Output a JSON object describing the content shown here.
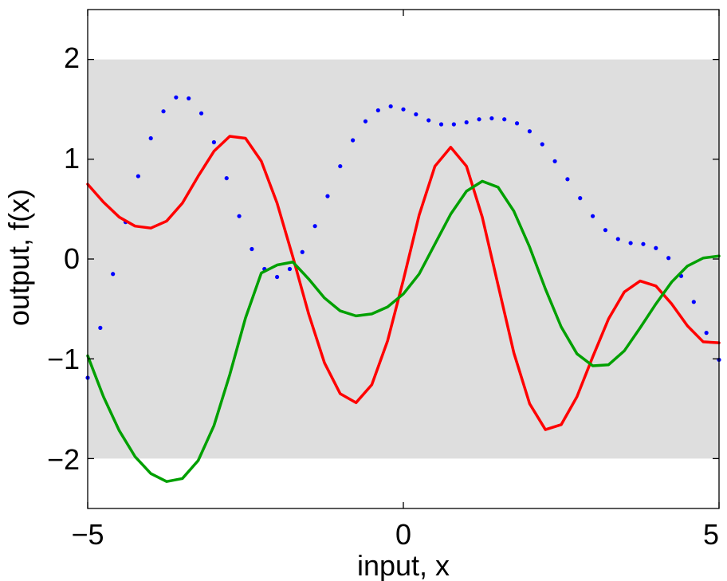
{
  "chart_data": {
    "type": "line",
    "title": "",
    "xlabel": "input, x",
    "ylabel": "output, f(x)",
    "xlim": [
      -5,
      5
    ],
    "ylim": [
      -2.5,
      2.5
    ],
    "xticks": [
      -5,
      0,
      5
    ],
    "yticks": [
      -2,
      -1,
      0,
      1,
      2
    ],
    "xtick_labels": [
      "−5",
      "0",
      "5"
    ],
    "ytick_labels": [
      "−2",
      "−1",
      "0",
      "1",
      "2"
    ],
    "grid": false,
    "legend": "none",
    "band": {
      "lower": -2,
      "upper": 2,
      "color": "#dedede"
    },
    "series": [
      {
        "style": "dots",
        "color": "#0000ff",
        "x": [
          -5.0,
          -4.8,
          -4.6,
          -4.4,
          -4.2,
          -4.0,
          -3.8,
          -3.6,
          -3.4,
          -3.2,
          -3.0,
          -2.8,
          -2.6,
          -2.4,
          -2.2,
          -2.0,
          -1.8,
          -1.6,
          -1.4,
          -1.2,
          -1.0,
          -0.8,
          -0.6,
          -0.4,
          -0.2,
          0.0,
          0.2,
          0.4,
          0.6,
          0.8,
          1.0,
          1.2,
          1.4,
          1.6,
          1.8,
          2.0,
          2.2,
          2.4,
          2.6,
          2.8,
          3.0,
          3.2,
          3.4,
          3.6,
          3.8,
          4.0,
          4.2,
          4.4,
          4.6,
          4.8,
          5.0
        ],
        "y": [
          -1.19,
          -0.69,
          -0.15,
          0.37,
          0.83,
          1.21,
          1.48,
          1.62,
          1.61,
          1.46,
          1.17,
          0.81,
          0.43,
          0.1,
          -0.1,
          -0.18,
          -0.1,
          0.07,
          0.33,
          0.63,
          0.93,
          1.19,
          1.38,
          1.49,
          1.53,
          1.5,
          1.45,
          1.39,
          1.35,
          1.35,
          1.37,
          1.4,
          1.41,
          1.4,
          1.36,
          1.28,
          1.15,
          0.98,
          0.8,
          0.61,
          0.43,
          0.29,
          0.2,
          0.16,
          0.15,
          0.11,
          0.01,
          -0.17,
          -0.43,
          -0.74,
          -1.01
        ]
      },
      {
        "style": "line",
        "color": "#ff0000",
        "x": [
          -5.0,
          -4.75,
          -4.5,
          -4.25,
          -4.0,
          -3.75,
          -3.5,
          -3.25,
          -3.0,
          -2.75,
          -2.5,
          -2.25,
          -2.0,
          -1.75,
          -1.5,
          -1.25,
          -1.0,
          -0.75,
          -0.5,
          -0.25,
          0.0,
          0.25,
          0.5,
          0.75,
          1.0,
          1.25,
          1.5,
          1.75,
          2.0,
          2.25,
          2.5,
          2.75,
          3.0,
          3.25,
          3.5,
          3.75,
          4.0,
          4.25,
          4.5,
          4.75,
          5.0
        ],
        "y": [
          0.75,
          0.57,
          0.42,
          0.33,
          0.31,
          0.38,
          0.56,
          0.83,
          1.08,
          1.23,
          1.21,
          0.98,
          0.56,
          0.02,
          -0.55,
          -1.04,
          -1.35,
          -1.44,
          -1.26,
          -0.82,
          -0.21,
          0.44,
          0.93,
          1.12,
          0.93,
          0.42,
          -0.26,
          -0.94,
          -1.45,
          -1.71,
          -1.66,
          -1.38,
          -0.98,
          -0.6,
          -0.33,
          -0.22,
          -0.27,
          -0.45,
          -0.67,
          -0.83,
          -0.84
        ]
      },
      {
        "style": "line",
        "color": "#00a000",
        "x": [
          -5.0,
          -4.75,
          -4.5,
          -4.25,
          -4.0,
          -3.75,
          -3.5,
          -3.25,
          -3.0,
          -2.75,
          -2.5,
          -2.25,
          -2.0,
          -1.75,
          -1.5,
          -1.25,
          -1.0,
          -0.75,
          -0.5,
          -0.25,
          0.0,
          0.25,
          0.5,
          0.75,
          1.0,
          1.25,
          1.5,
          1.75,
          2.0,
          2.25,
          2.5,
          2.75,
          3.0,
          3.25,
          3.5,
          3.75,
          4.0,
          4.25,
          4.5,
          4.75,
          5.0
        ],
        "y": [
          -0.97,
          -1.38,
          -1.72,
          -1.98,
          -2.15,
          -2.23,
          -2.2,
          -2.02,
          -1.67,
          -1.16,
          -0.59,
          -0.14,
          -0.06,
          -0.03,
          -0.2,
          -0.39,
          -0.52,
          -0.57,
          -0.55,
          -0.48,
          -0.35,
          -0.15,
          0.15,
          0.45,
          0.68,
          0.78,
          0.72,
          0.48,
          0.12,
          -0.3,
          -0.68,
          -0.95,
          -1.07,
          -1.06,
          -0.92,
          -0.69,
          -0.45,
          -0.23,
          -0.07,
          0.01,
          0.03
        ]
      }
    ]
  }
}
